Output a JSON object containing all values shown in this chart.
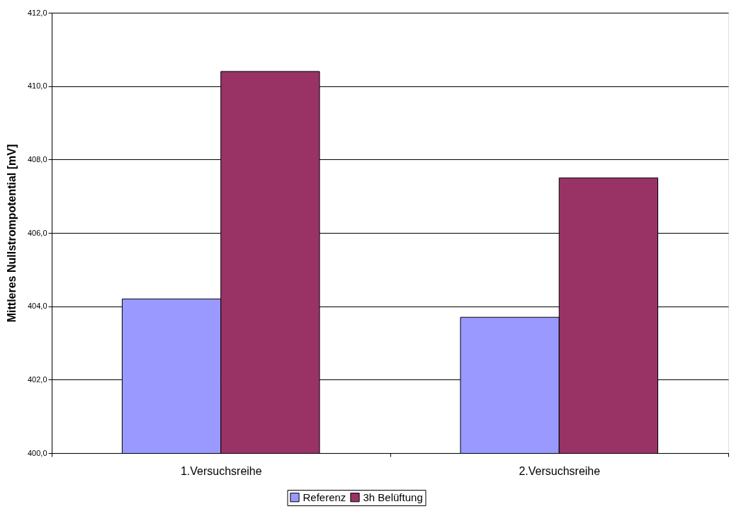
{
  "chart_data": {
    "type": "bar",
    "ylabel": "Mittleres Nullstrompotential [mV]",
    "categories": [
      "1.Versuchsreihe",
      "2.Versuchsreihe"
    ],
    "series": [
      {
        "name": "Referenz",
        "color": "#9999ff",
        "values": [
          404.2,
          403.7
        ]
      },
      {
        "name": "3h Belüftung",
        "color": "#993366",
        "values": [
          410.4,
          407.5
        ]
      }
    ],
    "ylim": [
      400,
      412
    ],
    "yticks": [
      {
        "value": 400,
        "label": "400,0"
      },
      {
        "value": 402,
        "label": "402,0"
      },
      {
        "value": 404,
        "label": "404,0"
      },
      {
        "value": 406,
        "label": "406,0"
      },
      {
        "value": 408,
        "label": "408,0"
      },
      {
        "value": 410,
        "label": "410,0"
      },
      {
        "value": 412,
        "label": "412,0"
      }
    ],
    "grid": "y",
    "legend": "bottom"
  }
}
